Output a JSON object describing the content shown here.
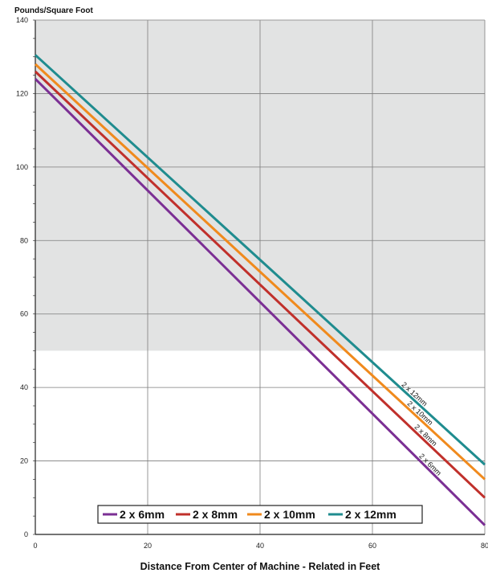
{
  "chart_data": {
    "type": "line",
    "ylabel": "Pounds/Square Foot",
    "xlabel": "Distance From Center of Machine - Related in Feet",
    "xlim": [
      0,
      80
    ],
    "ylim": [
      0,
      140
    ],
    "x_ticks": [
      0,
      20,
      40,
      60,
      80
    ],
    "y_ticks": [
      0,
      20,
      40,
      60,
      80,
      100,
      120,
      140
    ],
    "x_tick_labels": [
      "0",
      "20",
      "40",
      "60",
      "80"
    ],
    "y_tick_labels": [
      "0",
      "20",
      "40",
      "60",
      "80",
      "100",
      "120",
      "140"
    ],
    "grid": true,
    "shaded_region": {
      "y_from": 50,
      "y_to": 140,
      "color": "#e2e3e3"
    },
    "legend_position": "bottom-center",
    "series": [
      {
        "name": "2 x 6mm",
        "color": "#7b2f94",
        "x": [
          0,
          80
        ],
        "y": [
          124,
          2.5
        ]
      },
      {
        "name": "2 x 8mm",
        "color": "#c0302b",
        "x": [
          0,
          80
        ],
        "y": [
          126,
          10
        ]
      },
      {
        "name": "2 x 10mm",
        "color": "#f08a1d",
        "x": [
          0,
          80
        ],
        "y": [
          128,
          15
        ]
      },
      {
        "name": "2 x 12mm",
        "color": "#1f8c8f",
        "x": [
          0,
          80
        ],
        "y": [
          130.5,
          19
        ]
      }
    ],
    "line_labels": [
      {
        "text": "2 x 12mm",
        "series": 3
      },
      {
        "text": "2 x 10mm",
        "series": 2
      },
      {
        "text": "2 x 8mm",
        "series": 1
      },
      {
        "text": "2 x 6mm",
        "series": 0
      }
    ]
  }
}
